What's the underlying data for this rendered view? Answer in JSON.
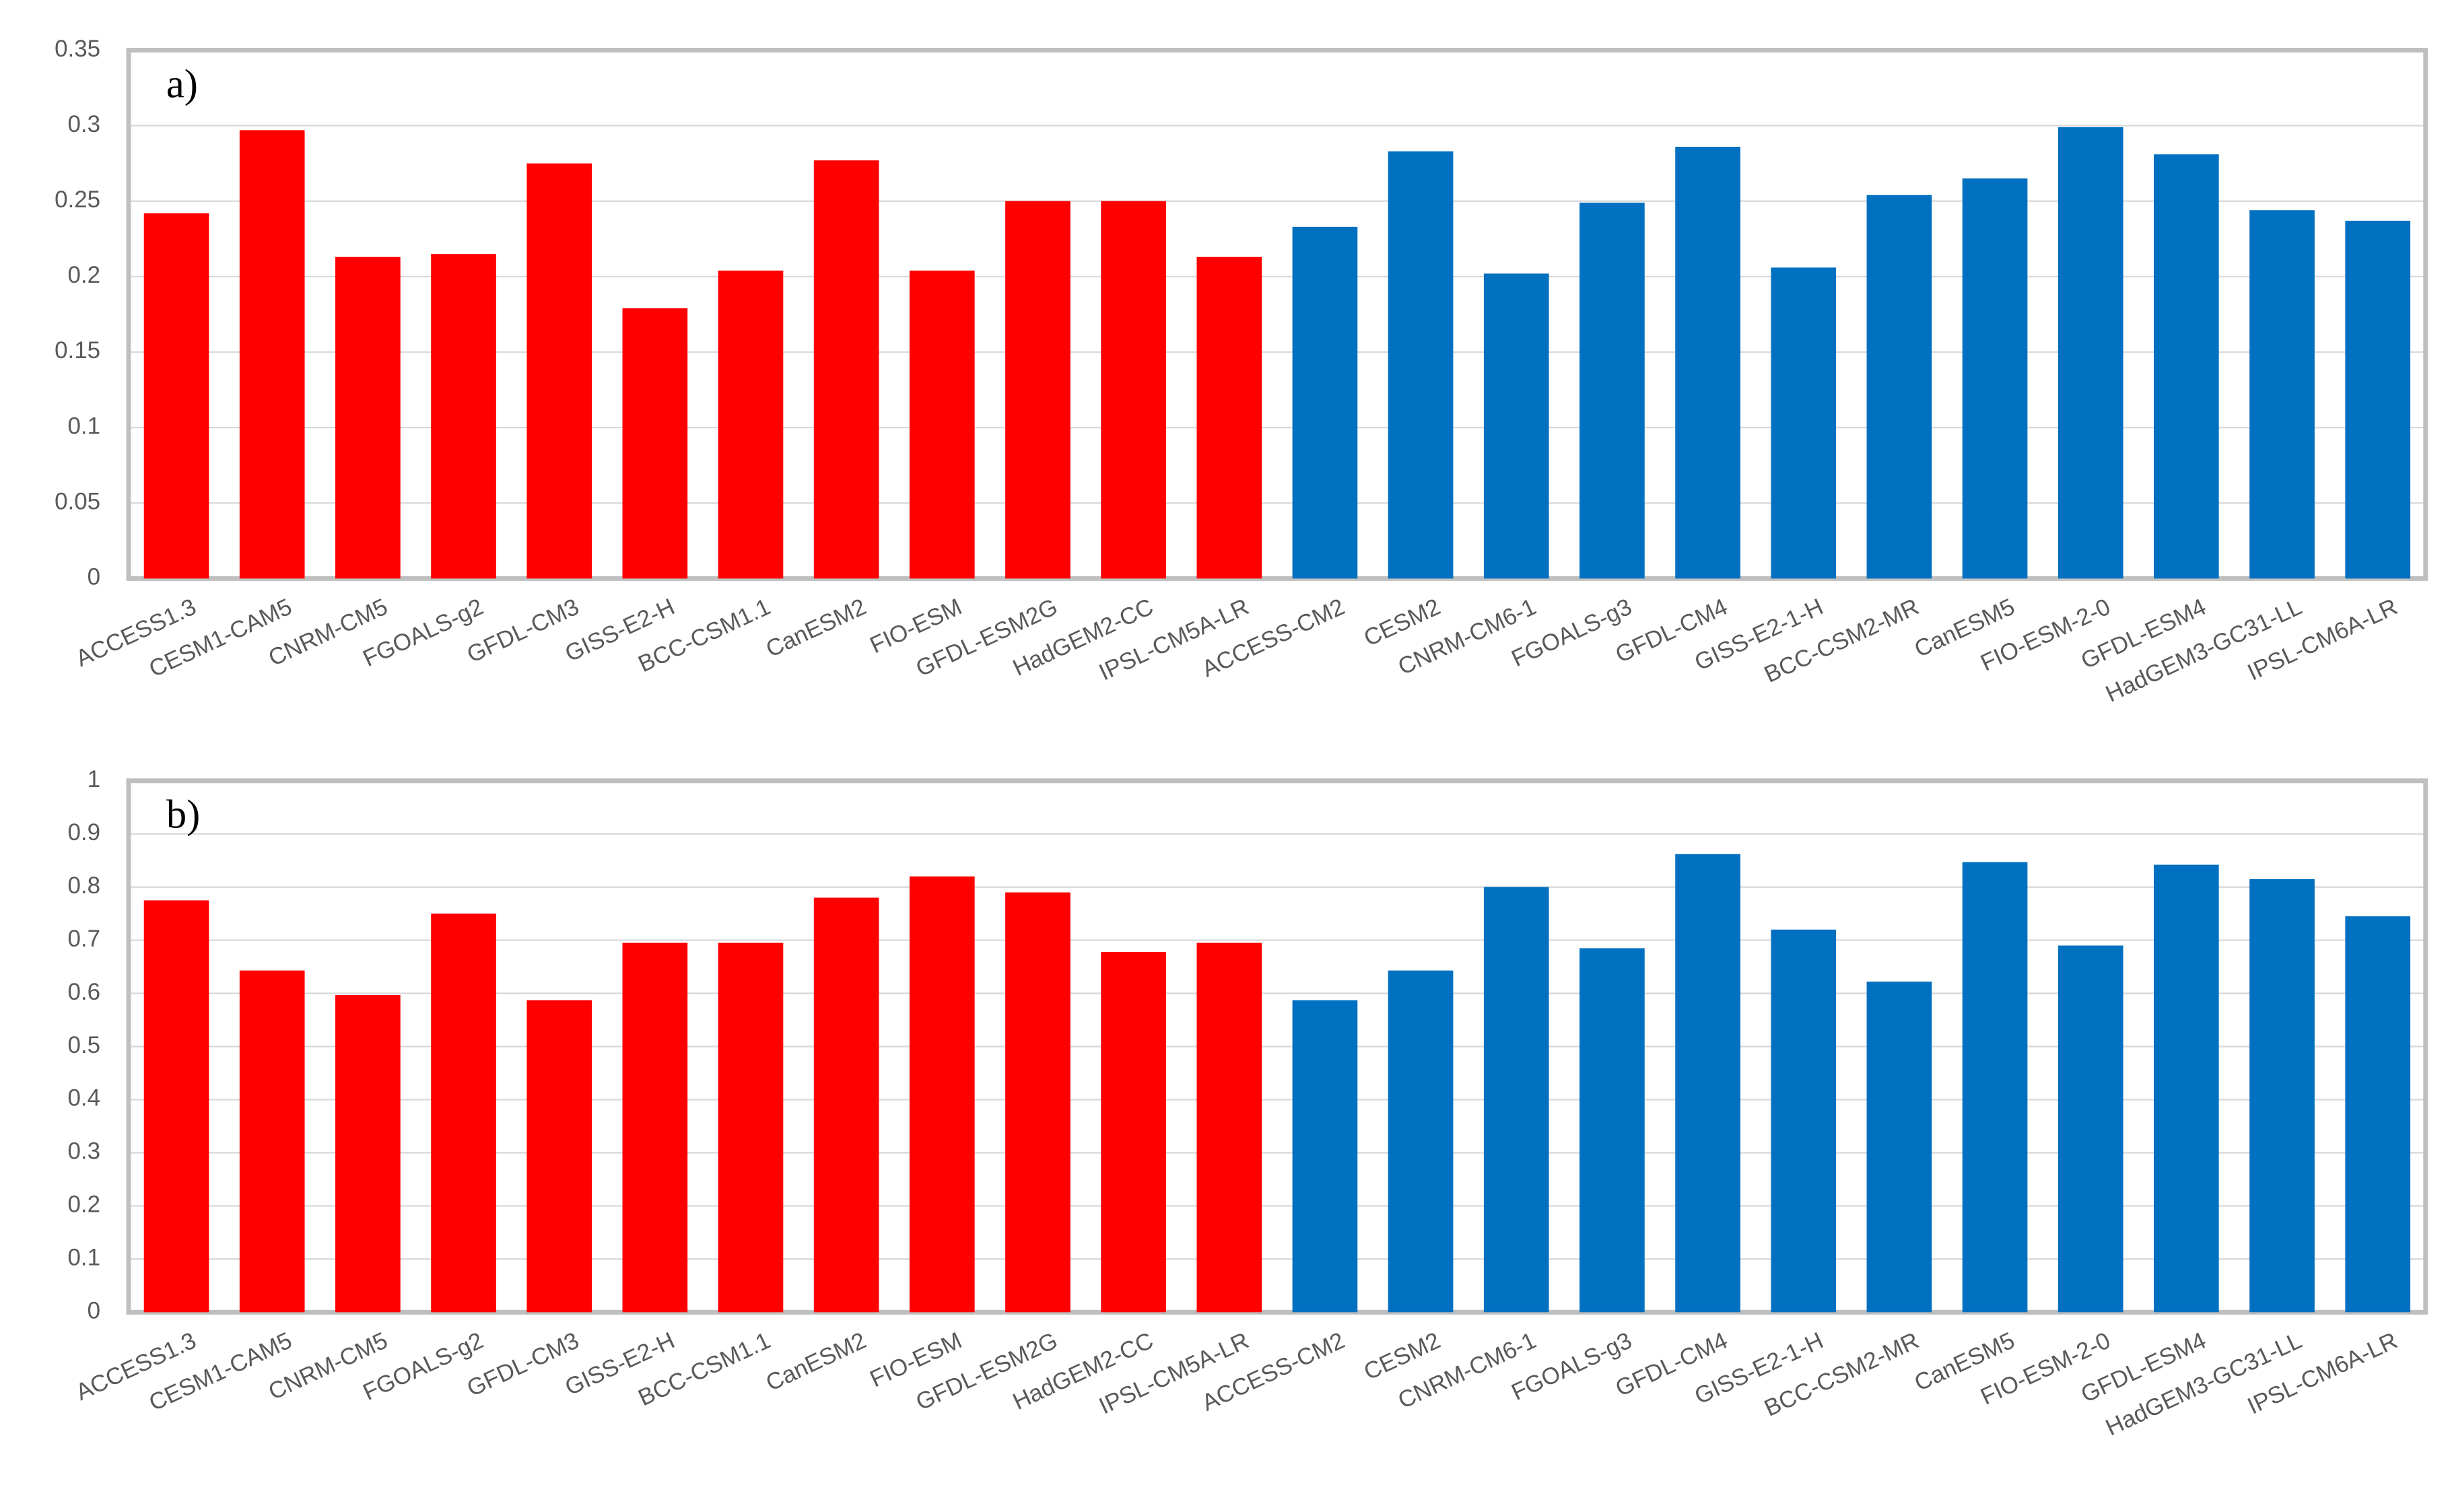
{
  "chart_data": [
    {
      "type": "bar",
      "annotation": "a)",
      "categories": [
        "ACCESS1.3",
        "CESM1-CAM5",
        "CNRM-CM5",
        "FGOALS-g2",
        "GFDL-CM3",
        "GISS-E2-H",
        "BCC-CSM1.1",
        "CanESM2",
        "FIO-ESM",
        "GFDL-ESM2G",
        "HadGEM2-CC",
        "IPSL-CM5A-LR",
        "ACCESS-CM2",
        "CESM2",
        "CNRM-CM6-1",
        "FGOALS-g3",
        "GFDL-CM4",
        "GISS-E2-1-H",
        "BCC-CSM2-MR",
        "CanESM5",
        "FIO-ESM-2-0",
        "GFDL-ESM4",
        "HadGEM3-GC31-LL",
        "IPSL-CM6A-LR"
      ],
      "values": [
        0.242,
        0.297,
        0.213,
        0.215,
        0.275,
        0.179,
        0.204,
        0.277,
        0.204,
        0.25,
        0.25,
        0.213,
        0.233,
        0.283,
        0.202,
        0.249,
        0.286,
        0.206,
        0.254,
        0.265,
        0.299,
        0.281,
        0.244,
        0.237
      ],
      "colors": [
        "#ff0000",
        "#ff0000",
        "#ff0000",
        "#ff0000",
        "#ff0000",
        "#ff0000",
        "#ff0000",
        "#ff0000",
        "#ff0000",
        "#ff0000",
        "#ff0000",
        "#ff0000",
        "#0070c0",
        "#0070c0",
        "#0070c0",
        "#0070c0",
        "#0070c0",
        "#0070c0",
        "#0070c0",
        "#0070c0",
        "#0070c0",
        "#0070c0",
        "#0070c0",
        "#0070c0"
      ],
      "ylim": [
        0,
        0.35
      ],
      "yticks": [
        0,
        0.05,
        0.1,
        0.15,
        0.2,
        0.25,
        0.3,
        0.35
      ],
      "grid": true
    },
    {
      "type": "bar",
      "annotation": "b)",
      "categories": [
        "ACCESS1.3",
        "CESM1-CAM5",
        "CNRM-CM5",
        "FGOALS-g2",
        "GFDL-CM3",
        "GISS-E2-H",
        "BCC-CSM1.1",
        "CanESM2",
        "FIO-ESM",
        "GFDL-ESM2G",
        "HadGEM2-CC",
        "IPSL-CM5A-LR",
        "ACCESS-CM2",
        "CESM2",
        "CNRM-CM6-1",
        "FGOALS-g3",
        "GFDL-CM4",
        "GISS-E2-1-H",
        "BCC-CSM2-MR",
        "CanESM5",
        "FIO-ESM-2-0",
        "GFDL-ESM4",
        "HadGEM3-GC31-LL",
        "IPSL-CM6A-LR"
      ],
      "values": [
        0.775,
        0.643,
        0.597,
        0.75,
        0.587,
        0.695,
        0.695,
        0.78,
        0.82,
        0.79,
        0.678,
        0.695,
        0.587,
        0.643,
        0.8,
        0.685,
        0.862,
        0.72,
        0.622,
        0.847,
        0.69,
        0.842,
        0.815,
        0.745
      ],
      "colors": [
        "#ff0000",
        "#ff0000",
        "#ff0000",
        "#ff0000",
        "#ff0000",
        "#ff0000",
        "#ff0000",
        "#ff0000",
        "#ff0000",
        "#ff0000",
        "#ff0000",
        "#ff0000",
        "#0070c0",
        "#0070c0",
        "#0070c0",
        "#0070c0",
        "#0070c0",
        "#0070c0",
        "#0070c0",
        "#0070c0",
        "#0070c0",
        "#0070c0",
        "#0070c0",
        "#0070c0"
      ],
      "ylim": [
        0,
        1
      ],
      "yticks": [
        0,
        0.1,
        0.2,
        0.3,
        0.4,
        0.5,
        0.6,
        0.7,
        0.8,
        0.9,
        1
      ],
      "grid": true
    }
  ]
}
